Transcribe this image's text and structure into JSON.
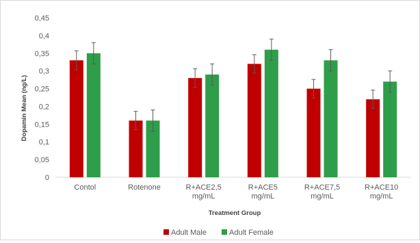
{
  "chart_data": {
    "type": "bar",
    "title": "",
    "xlabel": "Treatment Group",
    "ylabel": "Dopamin Mean (ng/L)",
    "ylim": [
      0,
      0.45
    ],
    "ytick_step": 0.05,
    "ytick_labels": [
      "0",
      "0,05",
      "0,1",
      "0,15",
      "0,2",
      "0,25",
      "0,3",
      "0,35",
      "0,4",
      "0,45"
    ],
    "categories": [
      [
        "Contol"
      ],
      [
        "Rotenone"
      ],
      [
        "R+ACE2,5",
        "mg/mL"
      ],
      [
        "R+ACE5",
        "mg/mL"
      ],
      [
        "R+ACE7,5",
        "mg/mL"
      ],
      [
        "R+ACE10",
        "mg/mL"
      ]
    ],
    "series": [
      {
        "name": "Adult Male",
        "color": "#c00000",
        "values": [
          0.33,
          0.16,
          0.28,
          0.32,
          0.25,
          0.22
        ],
        "errors": [
          0.027,
          0.026,
          0.026,
          0.026,
          0.026,
          0.026
        ]
      },
      {
        "name": "Adult Female",
        "color": "#2e9e4a",
        "values": [
          0.35,
          0.16,
          0.29,
          0.36,
          0.33,
          0.27
        ],
        "errors": [
          0.03,
          0.03,
          0.03,
          0.03,
          0.03,
          0.03
        ]
      }
    ],
    "grid": false,
    "legend": "bottom-center"
  }
}
